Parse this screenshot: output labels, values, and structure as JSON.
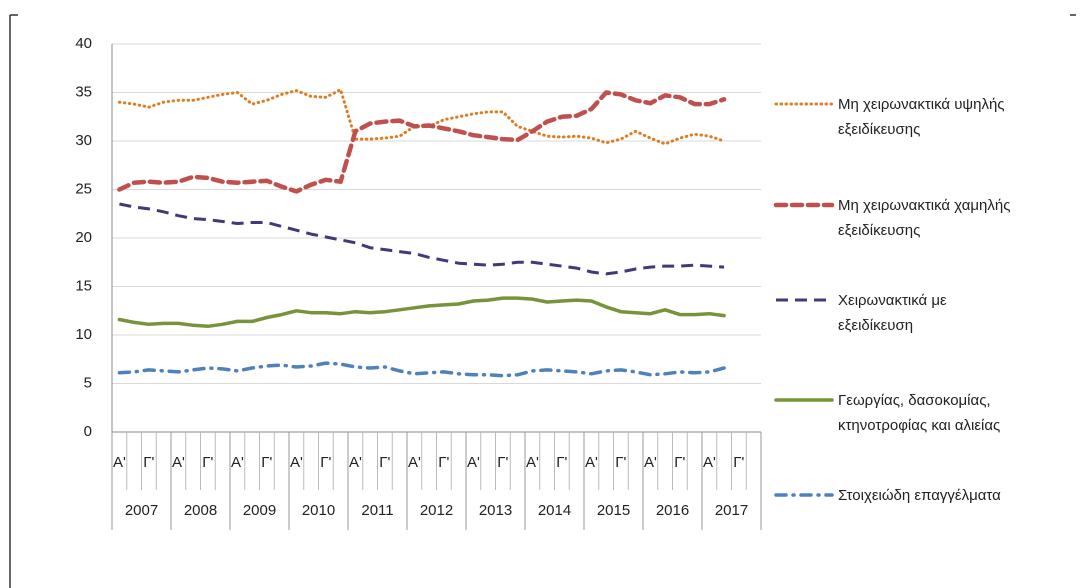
{
  "chart_data": {
    "type": "line",
    "categories": [
      "Α'",
      null,
      "Γ'",
      null,
      "Α'",
      null,
      "Γ'",
      null,
      "Α'",
      null,
      "Γ'",
      null,
      "Α'",
      null,
      "Γ'",
      null,
      "Α'",
      null,
      "Γ'",
      null,
      "Α'",
      null,
      "Γ'",
      null,
      "Α'",
      null,
      "Γ'",
      null,
      "Α'",
      null,
      "Γ'",
      null,
      "Α'",
      null,
      "Γ'",
      null,
      "Α'",
      null,
      "Γ'",
      null,
      "Α'",
      null,
      "Γ'",
      null
    ],
    "years": [
      "2007",
      "2008",
      "2009",
      "2010",
      "2011",
      "2012",
      "2013",
      "2014",
      "2015",
      "2016",
      "2017"
    ],
    "ylim": [
      0,
      40
    ],
    "yticks": [
      0,
      5,
      10,
      15,
      20,
      25,
      30,
      35,
      40
    ],
    "grid": true,
    "legend": "right",
    "series": [
      {
        "name": "Μη χειρωνακτικά υψηλής εξειδίκευσης",
        "color": "#e07b1f",
        "style": "dotted",
        "values": [
          34,
          33.8,
          33.5,
          34,
          34.2,
          34.2,
          34.5,
          34.8,
          35,
          33.8,
          34.2,
          34.8,
          35.2,
          34.6,
          34.5,
          35.3,
          30.2,
          30.2,
          30.3,
          30.5,
          31.5,
          31.5,
          32.2,
          32.5,
          32.8,
          33,
          33,
          31.5,
          31,
          30.5,
          30.4,
          30.5,
          30.3,
          29.8,
          30.2,
          31,
          30.3,
          29.7,
          30.3,
          30.7,
          30.5,
          30,
          null,
          null
        ]
      },
      {
        "name": "Μη χειρωνακτικά χαμηλής εξειδίκευσης",
        "color": "#c0504d",
        "style": "dashed",
        "values": [
          25,
          25.7,
          25.8,
          25.7,
          25.8,
          26.3,
          26.2,
          25.8,
          25.7,
          25.8,
          25.9,
          25.3,
          24.8,
          25.5,
          26,
          25.8,
          31,
          31.8,
          32,
          32.1,
          31.5,
          31.6,
          31.3,
          31,
          30.6,
          30.4,
          30.2,
          30.1,
          31,
          32,
          32.5,
          32.6,
          33.3,
          35,
          34.8,
          34.2,
          33.9,
          34.7,
          34.5,
          33.8,
          33.8,
          34.3,
          null,
          null
        ]
      },
      {
        "name": "Χειρωνακτικά με εξειδίκευση",
        "color": "#403a78",
        "style": "longdash",
        "values": [
          23.5,
          23.2,
          23,
          22.7,
          22.3,
          22,
          21.9,
          21.7,
          21.5,
          21.6,
          21.6,
          21.2,
          20.8,
          20.4,
          20.1,
          19.8,
          19.5,
          19,
          18.8,
          18.6,
          18.4,
          18,
          17.7,
          17.4,
          17.3,
          17.2,
          17.3,
          17.5,
          17.5,
          17.3,
          17.1,
          16.9,
          16.5,
          16.3,
          16.5,
          16.8,
          17,
          17.1,
          17.1,
          17.2,
          17.1,
          17,
          null,
          null
        ]
      },
      {
        "name": "Γεωργίας, δασοκομίας, κτηνοτροφίας και αλιείας",
        "color": "#77933c",
        "style": "solid",
        "values": [
          11.6,
          11.3,
          11.1,
          11.2,
          11.2,
          11,
          10.9,
          11.1,
          11.4,
          11.4,
          11.8,
          12.1,
          12.5,
          12.3,
          12.3,
          12.2,
          12.4,
          12.3,
          12.4,
          12.6,
          12.8,
          13,
          13.1,
          13.2,
          13.5,
          13.6,
          13.8,
          13.8,
          13.7,
          13.4,
          13.5,
          13.6,
          13.5,
          12.9,
          12.4,
          12.3,
          12.2,
          12.6,
          12.1,
          12.1,
          12.2,
          12,
          null,
          null
        ]
      },
      {
        "name": "Στοιχειώδη επαγγέλματα",
        "color": "#4f81bd",
        "style": "dashdot",
        "values": [
          6.1,
          6.2,
          6.4,
          6.3,
          6.2,
          6.4,
          6.6,
          6.5,
          6.3,
          6.6,
          6.8,
          6.9,
          6.7,
          6.8,
          7.1,
          7,
          6.7,
          6.6,
          6.7,
          6.3,
          6,
          6.1,
          6.2,
          6,
          5.9,
          5.9,
          5.8,
          5.9,
          6.3,
          6.4,
          6.3,
          6.2,
          6,
          6.3,
          6.4,
          6.2,
          5.9,
          6,
          6.2,
          6.1,
          6.2,
          6.6,
          null,
          null
        ]
      }
    ]
  }
}
